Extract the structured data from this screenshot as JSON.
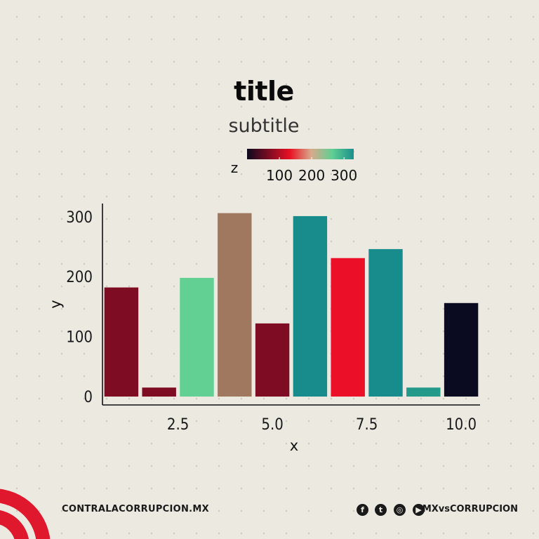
{
  "chart_data": {
    "type": "bar",
    "title": "title",
    "subtitle": "subtitle",
    "xlabel": "x",
    "ylabel": "y",
    "x": [
      1,
      2,
      3,
      4,
      5,
      6,
      7,
      8,
      9,
      10
    ],
    "values": [
      182,
      15,
      198,
      306,
      122,
      301,
      231,
      246,
      15,
      156
    ],
    "z": [
      100,
      100,
      250,
      150,
      100,
      300,
      95,
      300,
      280,
      5
    ],
    "xlim": [
      0.5,
      10.5
    ],
    "ylim": [
      -14,
      322
    ],
    "xticks": [
      2.5,
      5.0,
      7.5,
      10.0
    ],
    "xtick_labels": [
      "2.5",
      "5.0",
      "7.5",
      "10.0"
    ],
    "yticks": [
      0,
      100,
      200,
      300
    ],
    "ytick_labels": [
      "0",
      "100",
      "200",
      "300"
    ],
    "colorbar": {
      "label": "z",
      "range": [
        0,
        330
      ],
      "ticks": [
        100,
        200,
        300
      ],
      "tick_labels": [
        "100",
        "200",
        "300"
      ],
      "colors": [
        "#0d0a1e",
        "#7a0c22",
        "#e81123",
        "#d9a98b",
        "#5fcf93",
        "#1a8f8c"
      ],
      "placement": "top"
    },
    "bar_colors": [
      "#7e0c22",
      "#7e0c22",
      "#62cf93",
      "#a0785f",
      "#7e0c22",
      "#188c8c",
      "#eb0f27",
      "#188c8c",
      "#239a8a",
      "#0a0a20"
    ],
    "grid": false
  },
  "footer": {
    "website": "CONTRALACORRUPCION.MX",
    "handle": "MXvsCORRUPCION",
    "icons": [
      "facebook-icon",
      "twitter-icon",
      "instagram-icon",
      "youtube-icon"
    ]
  },
  "brand": {
    "accent": "#e0182d"
  }
}
